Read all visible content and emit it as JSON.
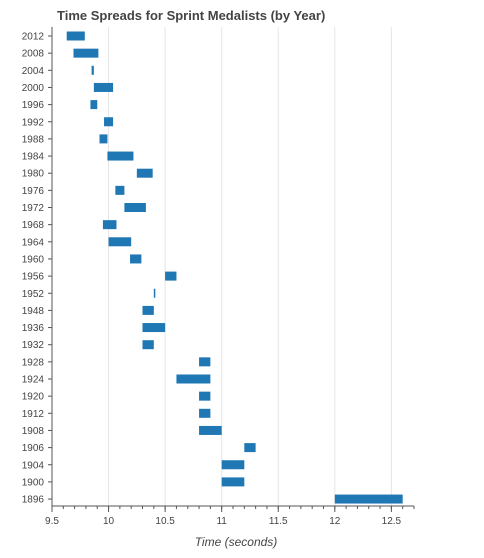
{
  "chart_data": {
    "type": "bar",
    "orientation": "horizontal-range",
    "title": "Time Spreads for Sprint Medalists (by Year)",
    "xlabel": "Time (seconds)",
    "ylabel": "",
    "xlim": [
      9.5,
      12.7
    ],
    "x_ticks": [
      "9.5",
      "10",
      "10.5",
      "11",
      "11.5",
      "12",
      "12.5"
    ],
    "x_tick_values": [
      9.5,
      10,
      10.5,
      11,
      11.5,
      12,
      12.5
    ],
    "grid": true,
    "bar_color": "#1f77b4",
    "categories": [
      "2012",
      "2008",
      "2004",
      "2000",
      "1996",
      "1992",
      "1988",
      "1984",
      "1980",
      "1976",
      "1972",
      "1968",
      "1964",
      "1960",
      "1956",
      "1952",
      "1948",
      "1936",
      "1932",
      "1928",
      "1924",
      "1920",
      "1912",
      "1908",
      "1906",
      "1904",
      "1900",
      "1896"
    ],
    "ranges": [
      [
        9.63,
        9.79
      ],
      [
        9.69,
        9.91
      ],
      [
        9.85,
        9.87
      ],
      [
        9.87,
        10.04
      ],
      [
        9.84,
        9.9
      ],
      [
        9.96,
        10.04
      ],
      [
        9.92,
        9.99
      ],
      [
        9.99,
        10.22
      ],
      [
        10.25,
        10.39
      ],
      [
        10.06,
        10.14
      ],
      [
        10.14,
        10.33
      ],
      [
        9.95,
        10.07
      ],
      [
        10.0,
        10.2
      ],
      [
        10.19,
        10.29
      ],
      [
        10.5,
        10.6
      ],
      [
        10.4,
        10.41
      ],
      [
        10.3,
        10.4
      ],
      [
        10.3,
        10.5
      ],
      [
        10.3,
        10.4
      ],
      [
        10.8,
        10.9
      ],
      [
        10.6,
        10.9
      ],
      [
        10.8,
        10.9
      ],
      [
        10.8,
        10.9
      ],
      [
        10.8,
        11.0
      ],
      [
        11.2,
        11.3
      ],
      [
        11.0,
        11.2
      ],
      [
        11.0,
        11.2
      ],
      [
        12.0,
        12.6
      ]
    ]
  }
}
